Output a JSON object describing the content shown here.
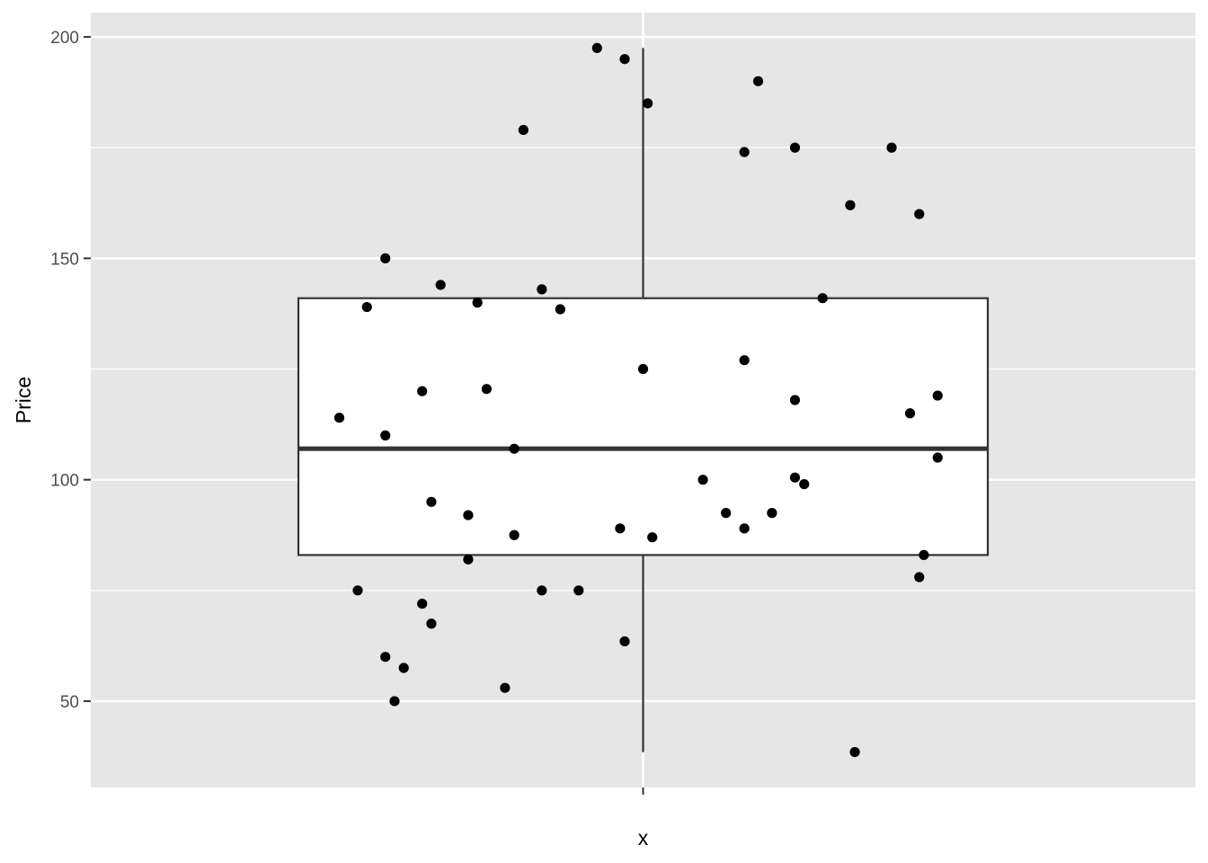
{
  "chart_data": {
    "type": "boxplot",
    "xlabel": "x",
    "ylabel": "Price",
    "x_ticks": [
      ""
    ],
    "y_ticks": [
      50,
      100,
      150,
      200
    ],
    "ylim": [
      30.5,
      205.5
    ],
    "grid": true,
    "box": {
      "category": "",
      "whisker_low": 38.5,
      "q1": 83,
      "median": 107,
      "q3": 141,
      "whisker_high": 197.5
    },
    "points": [
      {
        "x": -0.33,
        "y": 114
      },
      {
        "x": -0.31,
        "y": 75
      },
      {
        "x": -0.3,
        "y": 139
      },
      {
        "x": -0.28,
        "y": 150
      },
      {
        "x": -0.28,
        "y": 60
      },
      {
        "x": -0.28,
        "y": 110
      },
      {
        "x": -0.27,
        "y": 50
      },
      {
        "x": -0.26,
        "y": 57.5
      },
      {
        "x": -0.24,
        "y": 120
      },
      {
        "x": -0.24,
        "y": 72
      },
      {
        "x": -0.23,
        "y": 67.5
      },
      {
        "x": -0.23,
        "y": 95
      },
      {
        "x": -0.22,
        "y": 144
      },
      {
        "x": -0.19,
        "y": 82
      },
      {
        "x": -0.19,
        "y": 92
      },
      {
        "x": -0.18,
        "y": 140
      },
      {
        "x": -0.17,
        "y": 120.5
      },
      {
        "x": -0.15,
        "y": 53
      },
      {
        "x": -0.14,
        "y": 107
      },
      {
        "x": -0.14,
        "y": 87.5
      },
      {
        "x": -0.13,
        "y": 179
      },
      {
        "x": -0.11,
        "y": 75
      },
      {
        "x": -0.11,
        "y": 143
      },
      {
        "x": -0.09,
        "y": 138.5
      },
      {
        "x": -0.07,
        "y": 75
      },
      {
        "x": -0.05,
        "y": 197.5
      },
      {
        "x": -0.025,
        "y": 89
      },
      {
        "x": -0.02,
        "y": 195
      },
      {
        "x": -0.02,
        "y": 63.5
      },
      {
        "x": 0.0,
        "y": 125
      },
      {
        "x": 0.005,
        "y": 185
      },
      {
        "x": 0.01,
        "y": 87
      },
      {
        "x": 0.065,
        "y": 100
      },
      {
        "x": 0.09,
        "y": 92.5
      },
      {
        "x": 0.11,
        "y": 174
      },
      {
        "x": 0.11,
        "y": 127
      },
      {
        "x": 0.11,
        "y": 89
      },
      {
        "x": 0.125,
        "y": 190
      },
      {
        "x": 0.14,
        "y": 92.5
      },
      {
        "x": 0.165,
        "y": 118
      },
      {
        "x": 0.165,
        "y": 100.5
      },
      {
        "x": 0.165,
        "y": 175
      },
      {
        "x": 0.175,
        "y": 99
      },
      {
        "x": 0.195,
        "y": 141
      },
      {
        "x": 0.225,
        "y": 162
      },
      {
        "x": 0.23,
        "y": 38.5
      },
      {
        "x": 0.27,
        "y": 175
      },
      {
        "x": 0.29,
        "y": 115
      },
      {
        "x": 0.3,
        "y": 160
      },
      {
        "x": 0.3,
        "y": 78
      },
      {
        "x": 0.305,
        "y": 83
      },
      {
        "x": 0.32,
        "y": 105
      },
      {
        "x": 0.32,
        "y": 119
      }
    ]
  }
}
